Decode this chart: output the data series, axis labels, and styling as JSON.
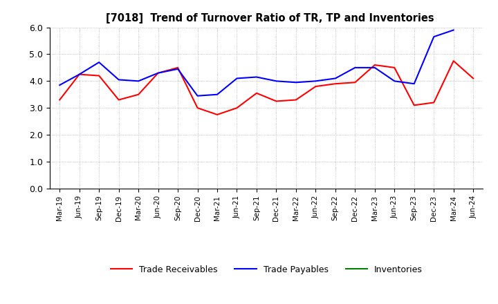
{
  "title": "[7018]  Trend of Turnover Ratio of TR, TP and Inventories",
  "x_labels": [
    "Mar-19",
    "Jun-19",
    "Sep-19",
    "Dec-19",
    "Mar-20",
    "Jun-20",
    "Sep-20",
    "Dec-20",
    "Mar-21",
    "Jun-21",
    "Sep-21",
    "Dec-21",
    "Mar-22",
    "Jun-22",
    "Sep-22",
    "Dec-22",
    "Mar-23",
    "Jun-23",
    "Sep-23",
    "Dec-23",
    "Mar-24",
    "Jun-24"
  ],
  "trade_receivables": [
    3.3,
    4.25,
    4.2,
    3.3,
    3.5,
    4.3,
    4.5,
    3.0,
    2.75,
    3.0,
    3.55,
    3.25,
    3.3,
    3.8,
    3.9,
    3.95,
    4.6,
    4.5,
    3.1,
    3.2,
    4.75,
    4.1
  ],
  "trade_payables": [
    3.85,
    4.25,
    4.7,
    4.05,
    4.0,
    4.3,
    4.45,
    3.45,
    3.5,
    4.1,
    4.15,
    4.0,
    3.95,
    4.0,
    4.1,
    4.5,
    4.5,
    4.0,
    3.9,
    5.65,
    5.9,
    null
  ],
  "inventories": [
    null,
    null,
    null,
    null,
    null,
    null,
    null,
    null,
    null,
    null,
    null,
    null,
    null,
    null,
    null,
    null,
    null,
    null,
    null,
    null,
    null,
    null
  ],
  "ylim": [
    0.0,
    6.0
  ],
  "yticks": [
    0.0,
    1.0,
    2.0,
    3.0,
    4.0,
    5.0,
    6.0
  ],
  "tr_color": "#ff0000",
  "tp_color": "#0000ff",
  "inv_color": "#008000",
  "legend_labels": [
    "Trade Receivables",
    "Trade Payables",
    "Inventories"
  ],
  "background_color": "#ffffff",
  "grid_color": "#aaaaaa"
}
